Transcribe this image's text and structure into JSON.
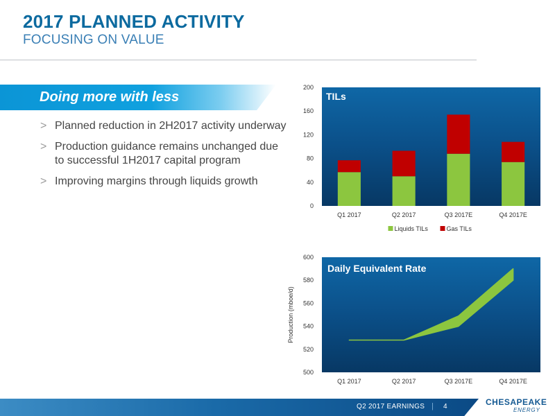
{
  "header": {
    "title": "2017 PLANNED ACTIVITY",
    "subtitle": "FOCUSING ON VALUE"
  },
  "banner": {
    "text": "Doing more with less"
  },
  "bullets": [
    {
      "marker": ">",
      "text": "Planned reduction in 2H2017 activity underway"
    },
    {
      "marker": ">",
      "text": "Production guidance remains unchanged due to successful 1H2017 capital program"
    },
    {
      "marker": ">",
      "text": "Improving margins through liquids growth"
    }
  ],
  "chart_data": [
    {
      "type": "bar",
      "stacked": true,
      "title": "TILs",
      "categories": [
        "Q1 2017",
        "Q2 2017",
        "Q3 2017E",
        "Q4 2017E"
      ],
      "series": [
        {
          "name": "Liquids TILs",
          "color": "#8cc63f",
          "values": [
            57,
            50,
            88,
            74
          ]
        },
        {
          "name": "Gas TILs",
          "color": "#c00000",
          "values": [
            20,
            43,
            66,
            34
          ]
        }
      ],
      "ylim": [
        0,
        200
      ],
      "yticks": [
        0,
        40,
        80,
        120,
        160,
        200
      ],
      "legend": "bottom",
      "grid": false
    },
    {
      "type": "area",
      "title": "Daily Equivalent Rate",
      "ylabel": "Production (mboe/d)",
      "categories": [
        "Q1 2017",
        "Q2 2017",
        "Q3 2017E",
        "Q4 2017E"
      ],
      "series": [
        {
          "name": "",
          "color": "#8cc63f",
          "low": [
            528,
            528,
            540,
            580
          ],
          "high": [
            528,
            528,
            549,
            590
          ]
        }
      ],
      "ylim": [
        500,
        600
      ],
      "yticks": [
        500,
        520,
        540,
        560,
        580,
        600
      ],
      "grid": false
    }
  ],
  "footer": {
    "label": "Q2 2017 EARNINGS",
    "separator": "|",
    "page": "4"
  },
  "logo": {
    "name": "CHESAPEAKE",
    "sub": "ENERGY"
  },
  "colors": {
    "title": "#0c6a9f",
    "panel": "#0b4f88",
    "liquids": "#8cc63f",
    "gas": "#c00000"
  }
}
